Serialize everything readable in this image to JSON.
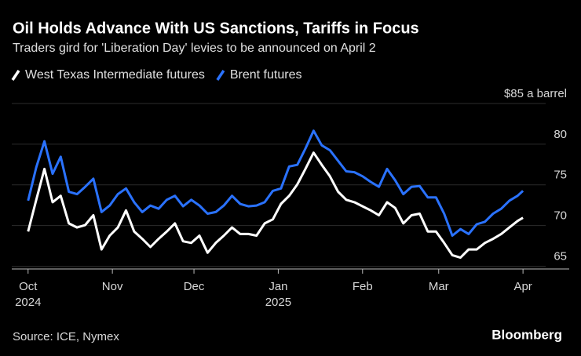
{
  "chart_data": {
    "type": "line",
    "title": "Oil Holds Advance With US Sanctions, Tariffs in Focus",
    "subtitle": "Traders gird for 'Liberation Day' levies to be announced on April 2",
    "source": "Source: ICE, Nymex",
    "brand": "Bloomberg",
    "x": [
      "2024-10-01",
      "2024-10-04",
      "2024-10-07",
      "2024-10-10",
      "2024-10-13",
      "2024-10-16",
      "2024-10-19",
      "2024-10-22",
      "2024-10-25",
      "2024-10-28",
      "2024-10-31",
      "2024-11-03",
      "2024-11-06",
      "2024-11-09",
      "2024-11-12",
      "2024-11-15",
      "2024-11-18",
      "2024-11-21",
      "2024-11-24",
      "2024-11-27",
      "2024-11-30",
      "2024-12-03",
      "2024-12-06",
      "2024-12-09",
      "2024-12-12",
      "2024-12-15",
      "2024-12-18",
      "2024-12-21",
      "2024-12-24",
      "2024-12-27",
      "2024-12-30",
      "2025-01-02",
      "2025-01-05",
      "2025-01-08",
      "2025-01-11",
      "2025-01-14",
      "2025-01-17",
      "2025-01-20",
      "2025-01-23",
      "2025-01-26",
      "2025-01-29",
      "2025-02-01",
      "2025-02-04",
      "2025-02-07",
      "2025-02-10",
      "2025-02-13",
      "2025-02-16",
      "2025-02-19",
      "2025-02-22",
      "2025-02-25",
      "2025-02-28",
      "2025-03-03",
      "2025-03-06",
      "2025-03-09",
      "2025-03-12",
      "2025-03-15",
      "2025-03-18",
      "2025-03-21",
      "2025-03-24",
      "2025-03-27",
      "2025-03-30",
      "2025-04-01"
    ],
    "series": [
      {
        "name": "West Texas Intermediate futures",
        "color": "#ffffff",
        "values": [
          68.1,
          72.0,
          75.8,
          71.7,
          72.5,
          69.1,
          68.6,
          68.9,
          70.1,
          65.9,
          67.6,
          68.6,
          70.7,
          68.1,
          67.2,
          66.2,
          67.2,
          68.1,
          69.1,
          66.9,
          66.7,
          67.6,
          65.5,
          66.7,
          67.6,
          68.6,
          67.8,
          67.8,
          67.6,
          69.1,
          69.6,
          71.5,
          72.5,
          73.9,
          75.8,
          77.8,
          76.3,
          74.9,
          73.0,
          72.0,
          71.7,
          71.2,
          70.7,
          70.1,
          71.7,
          71.0,
          69.1,
          70.1,
          70.3,
          68.1,
          68.1,
          66.7,
          65.2,
          64.9,
          65.9,
          65.9,
          66.7,
          67.2,
          67.8,
          68.6,
          69.4,
          69.8
        ]
      },
      {
        "name": "Brent futures",
        "color": "#2a72ff",
        "values": [
          71.9,
          76.0,
          79.2,
          75.2,
          77.3,
          73.0,
          72.7,
          73.6,
          74.6,
          70.5,
          71.3,
          72.7,
          73.4,
          71.7,
          70.5,
          71.3,
          70.9,
          72.0,
          72.5,
          71.2,
          72.0,
          71.3,
          70.3,
          70.5,
          71.3,
          72.5,
          71.5,
          71.2,
          71.3,
          71.7,
          73.1,
          73.4,
          76.1,
          76.3,
          78.3,
          80.5,
          78.7,
          78.1,
          76.8,
          75.5,
          75.4,
          74.9,
          74.2,
          73.6,
          75.8,
          74.4,
          72.7,
          73.6,
          73.7,
          72.3,
          72.3,
          70.3,
          67.6,
          68.4,
          67.8,
          69.0,
          69.3,
          70.3,
          70.9,
          71.9,
          72.5,
          73.1
        ]
      }
    ],
    "xlim": [
      "2024-09-25",
      "2025-04-18"
    ],
    "xticks": [
      {
        "value": "2024-10-01",
        "label": "Oct"
      },
      {
        "value": "2024-11-01",
        "label": "Nov"
      },
      {
        "value": "2024-12-01",
        "label": "Dec"
      },
      {
        "value": "2025-01-01",
        "label": "Jan"
      },
      {
        "value": "2025-02-01",
        "label": "Feb"
      },
      {
        "value": "2025-03-01",
        "label": "Mar"
      },
      {
        "value": "2025-04-01",
        "label": "Apr"
      }
    ],
    "year_labels": [
      {
        "value": "2024-10-01",
        "label": "2024"
      },
      {
        "value": "2025-01-01",
        "label": "2025"
      }
    ],
    "ylim": [
      63.5,
      85
    ],
    "yticks": [
      65,
      70,
      75,
      80,
      {
        "value": 85,
        "label": "$85 a barrel"
      }
    ],
    "grid": true
  }
}
